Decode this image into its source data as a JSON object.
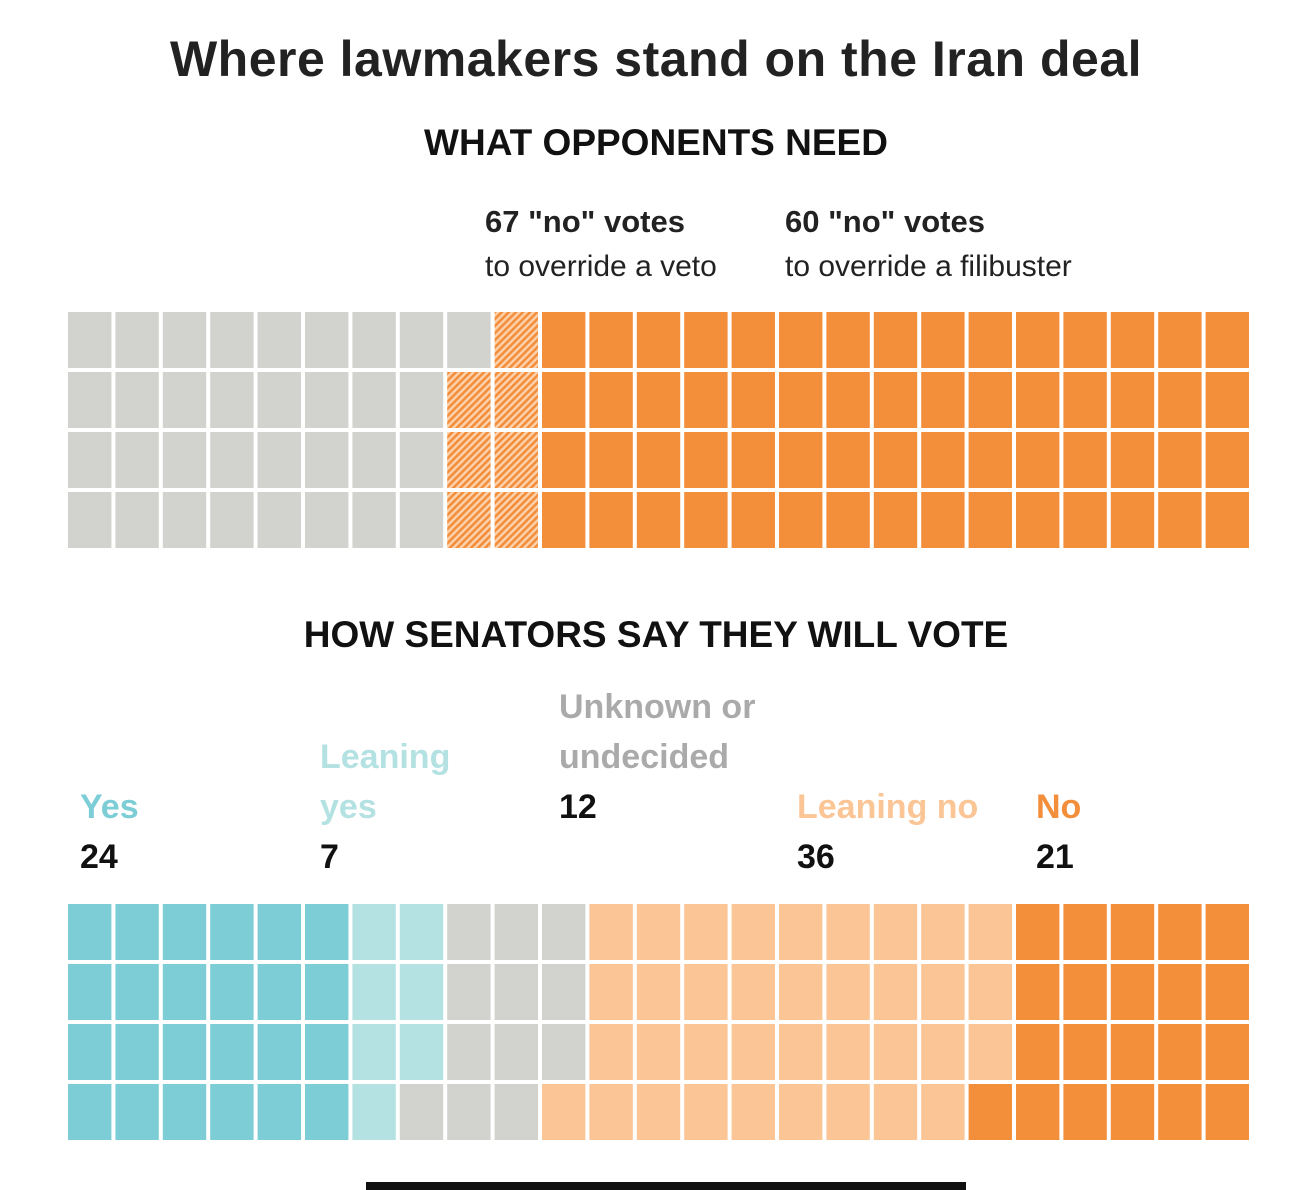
{
  "title": "Where lawmakers stand on the Iran deal",
  "section1": {
    "heading": "WHAT OPPONENTS NEED",
    "veto": {
      "count_label": "67 \"no\" votes",
      "desc": "to override a veto"
    },
    "filibuster": {
      "count_label": "60 \"no\" votes",
      "desc": "to override a filibuster"
    }
  },
  "section2": {
    "heading": "HOW SENATORS SAY THEY WILL VOTE",
    "categories": [
      {
        "key": "yes",
        "label": "Yes",
        "count": "24",
        "color": "#7ccdd5"
      },
      {
        "key": "leaning_yes",
        "label": "Leaning yes",
        "count": "7",
        "color": "#b4e1e2"
      },
      {
        "key": "unknown",
        "label": "Unknown or undecided",
        "count": "12",
        "color": "#d2d2cf"
      },
      {
        "key": "leaning_no",
        "label": "Leaning no",
        "count": "36",
        "color": "#fbc596"
      },
      {
        "key": "no",
        "label": "No",
        "count": "21",
        "color": "#f38e3b"
      }
    ]
  },
  "colors": {
    "grey": "#d2d2cf",
    "orange": "#f38e3b",
    "legend_yes": "#7ccdd5",
    "legend_leaning_yes": "#b4e1e2",
    "legend_unknown": "#aaaaaa",
    "legend_leaning_no": "#fbc596",
    "legend_no": "#f38e3b"
  },
  "chart_data": [
    {
      "type": "waffle",
      "title": "WHAT OPPONENTS NEED",
      "total": 100,
      "rows": 4,
      "thresholds": [
        {
          "label": "67 \"no\" votes",
          "value": 67,
          "desc": "to override a veto"
        },
        {
          "label": "60 \"no\" votes",
          "value": 60,
          "desc": "to override a filibuster"
        }
      ],
      "segments": [
        {
          "key": "other",
          "value": 33,
          "fill": "solid",
          "color": "#d2d2cf"
        },
        {
          "key": "veto_margin",
          "value": 7,
          "fill": "hatched",
          "color": "#f38e3b"
        },
        {
          "key": "filibuster",
          "value": 60,
          "fill": "solid",
          "color": "#f38e3b"
        }
      ]
    },
    {
      "type": "waffle",
      "title": "HOW SENATORS SAY THEY WILL VOTE",
      "total": 100,
      "rows": 4,
      "categories": [
        "Yes",
        "Leaning yes",
        "Unknown or undecided",
        "Leaning no",
        "No"
      ],
      "values": [
        24,
        7,
        12,
        36,
        21
      ]
    }
  ]
}
